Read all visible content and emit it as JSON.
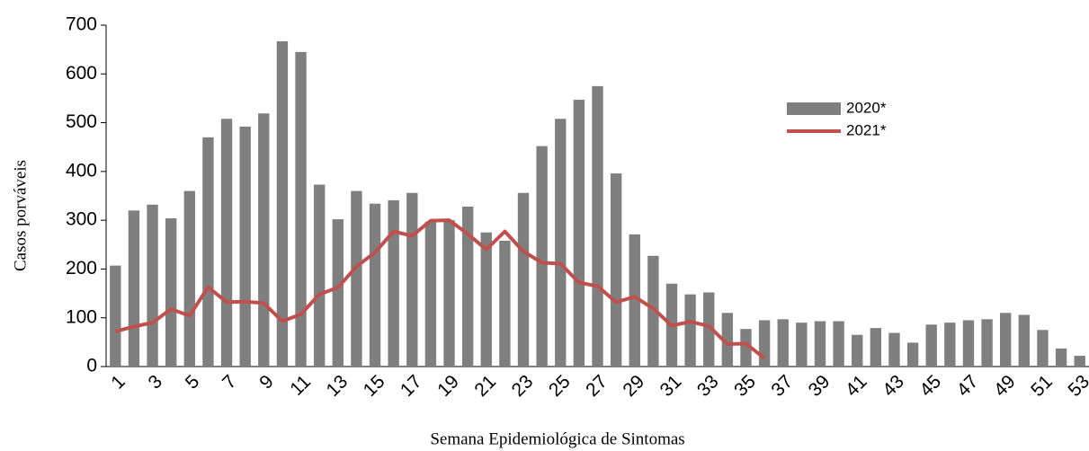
{
  "chart_data": {
    "type": "bar-line",
    "y_label": "Casos porváveis",
    "x_label": "Semana Epidemiológica de Sintomas",
    "categories": [
      "1",
      null,
      "3",
      null,
      "5",
      null,
      "7",
      null,
      "9",
      null,
      "11",
      null,
      "13",
      null,
      "15",
      null,
      "17",
      null,
      "19",
      null,
      "21",
      null,
      "23",
      null,
      "25",
      null,
      "27",
      null,
      "29",
      null,
      "31",
      null,
      "33",
      null,
      "35",
      null,
      "37",
      null,
      "39",
      null,
      "41",
      null,
      "43",
      null,
      "45",
      null,
      "47",
      null,
      "49",
      null,
      "51",
      null,
      "53"
    ],
    "series": [
      {
        "name": "2020*",
        "type": "bar",
        "color": "#7f7f7f",
        "values": [
          207,
          320,
          332,
          304,
          360,
          470,
          508,
          492,
          519,
          667,
          645,
          373,
          302,
          360,
          334,
          341,
          356,
          297,
          300,
          328,
          275,
          258,
          356,
          452,
          508,
          547,
          575,
          396,
          271,
          227,
          170,
          148,
          152,
          110,
          77,
          95,
          97,
          90,
          93,
          93,
          65,
          79,
          69,
          49,
          86,
          90,
          95,
          97,
          110,
          106,
          75,
          37,
          22
        ]
      },
      {
        "name": "2021*",
        "type": "line",
        "color": "#c0504d",
        "values": [
          72,
          82,
          90,
          118,
          104,
          163,
          132,
          133,
          130,
          93,
          107,
          148,
          162,
          205,
          234,
          277,
          268,
          299,
          300,
          272,
          240,
          277,
          236,
          213,
          211,
          172,
          165,
          132,
          143,
          119,
          84,
          92,
          83,
          46,
          47,
          17,
          null,
          null,
          null,
          null,
          null,
          null,
          null,
          null,
          null,
          null,
          null,
          null,
          null,
          null,
          null,
          null,
          null
        ]
      }
    ],
    "ylim": [
      0,
      700
    ],
    "yticks": [
      0,
      100,
      200,
      300,
      400,
      500,
      600,
      700
    ],
    "grid": false
  }
}
